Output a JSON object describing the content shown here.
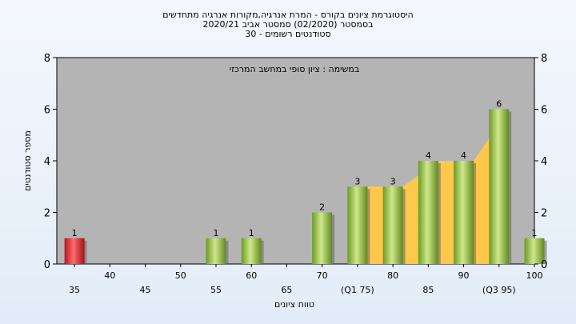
{
  "chart_data": {
    "type": "bar",
    "title_lines": [
      "היסטוגרמת ציונים בקורס - המרת אנרגיה,מקורות אנרגיה מתחדשים",
      "בסמסטר  (02/2020)  סמסטר אביב 2020/21",
      "סטודנטים רשומים - 30"
    ],
    "annotation": "במשימה : ציון סופי במחשב המרכזי",
    "xlabel": "טווח ציונים",
    "ylabel": "מספר סטודנטים",
    "ylim": [
      0,
      8
    ],
    "yticks": [
      0,
      2,
      4,
      6,
      8
    ],
    "categories": [
      "35",
      "40",
      "45",
      "50",
      "55",
      "60",
      "65",
      "70",
      "(Q1 75)",
      "80",
      "85",
      "90",
      "(Q3 95)",
      "100"
    ],
    "values": [
      1,
      0,
      0,
      0,
      1,
      1,
      0,
      2,
      3,
      3,
      4,
      4,
      6,
      1
    ],
    "grid": false,
    "colors": {
      "bar": "#8fbf3f",
      "bar_highlight": "#e0333a",
      "plot_bg": "#b4b4b4",
      "quartile_fill": "#ffc84a"
    },
    "highlight_category": "35",
    "quartile_band": {
      "from": "(Q1 75)",
      "to": "(Q3 95)"
    }
  }
}
